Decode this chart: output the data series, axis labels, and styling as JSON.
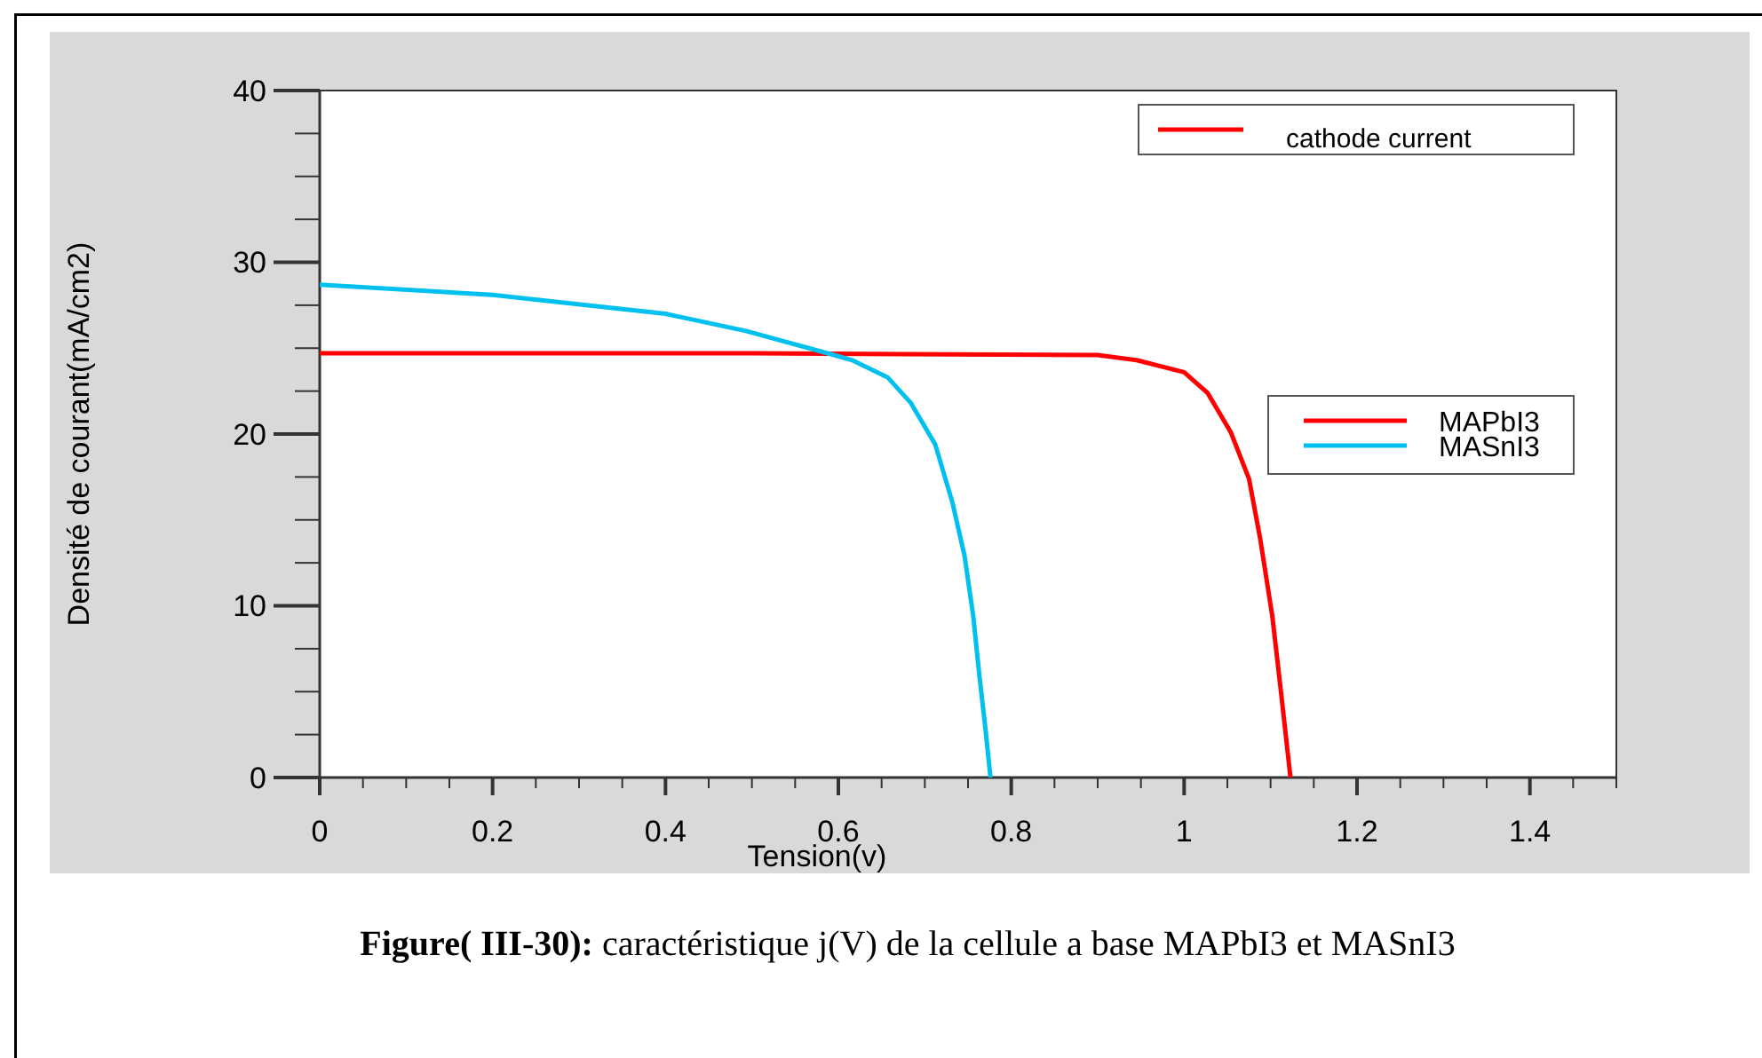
{
  "chart_data": {
    "type": "line",
    "xlabel": "Tension(v)",
    "ylabel": "Densité de courant(mA/cm2)",
    "xlim": [
      0,
      1.5
    ],
    "ylim": [
      0,
      40
    ],
    "xticks": [
      0,
      {
        "value": 0.05,
        "label": null
      },
      {
        "value": 0.1,
        "label": null
      },
      {
        "value": 0.15,
        "label": null
      },
      0.2,
      {
        "value": 0.25,
        "label": null
      },
      {
        "value": 0.3,
        "label": null
      },
      {
        "value": 0.35,
        "label": null
      },
      0.4,
      {
        "value": 0.45,
        "label": null
      },
      {
        "value": 0.5,
        "label": null
      },
      {
        "value": 0.55,
        "label": null
      },
      0.6,
      {
        "value": 0.65,
        "label": null
      },
      {
        "value": 0.7,
        "label": null
      },
      {
        "value": 0.75,
        "label": null
      },
      0.8,
      {
        "value": 0.85,
        "label": null
      },
      {
        "value": 0.9,
        "label": null
      },
      {
        "value": 0.95,
        "label": null
      },
      1,
      {
        "value": 1.05,
        "label": null
      },
      {
        "value": 1.1,
        "label": null
      },
      {
        "value": 1.15,
        "label": null
      },
      1.2,
      {
        "value": 1.25,
        "label": null
      },
      {
        "value": 1.3,
        "label": null
      },
      {
        "value": 1.35,
        "label": null
      },
      1.4,
      {
        "value": 1.45,
        "label": null
      },
      {
        "value": 1.5,
        "label": null
      }
    ],
    "yticks": [
      0,
      {
        "value": 2.5,
        "label": null
      },
      {
        "value": 5,
        "label": null
      },
      {
        "value": 7.5,
        "label": null
      },
      10,
      {
        "value": 12.5,
        "label": null
      },
      {
        "value": 15,
        "label": null
      },
      {
        "value": 17.5,
        "label": null
      },
      20,
      {
        "value": 22.5,
        "label": null
      },
      {
        "value": 25,
        "label": null
      },
      {
        "value": 27.5,
        "label": null
      },
      30,
      {
        "value": 32.5,
        "label": null
      },
      {
        "value": 35,
        "label": null
      },
      {
        "value": 37.5,
        "label": null
      },
      40
    ],
    "grid": false,
    "legend": "right",
    "marker": "none",
    "line_style": "solid",
    "series": [
      {
        "name": "MAPbI3",
        "color": "#ff0000",
        "x": [
          0,
          0.5,
          0.9,
          0.945,
          1.0,
          1.027,
          1.054,
          1.075,
          1.088,
          1.102,
          1.112,
          1.123
        ],
        "values": [
          24.7,
          24.7,
          24.6,
          24.3,
          23.6,
          22.4,
          20.1,
          17.4,
          13.9,
          9.4,
          5.0,
          0
        ]
      },
      {
        "name": "MASnI3",
        "color": "#00c0f0",
        "x": [
          0,
          0.2,
          0.4,
          0.493,
          0.595,
          0.616,
          0.657,
          0.684,
          0.712,
          0.732,
          0.746,
          0.756,
          0.763,
          0.77,
          0.776
        ],
        "values": [
          28.7,
          28.1,
          27.0,
          26.0,
          24.6,
          24.3,
          23.3,
          21.8,
          19.4,
          16.0,
          12.9,
          9.4,
          6.0,
          2.9,
          0
        ]
      }
    ],
    "annotations": [
      "cathode current",
      "Figure( III-30): caractéristique j(V) de la cellule a base MAPbI3 et MASnI3"
    ]
  }
}
